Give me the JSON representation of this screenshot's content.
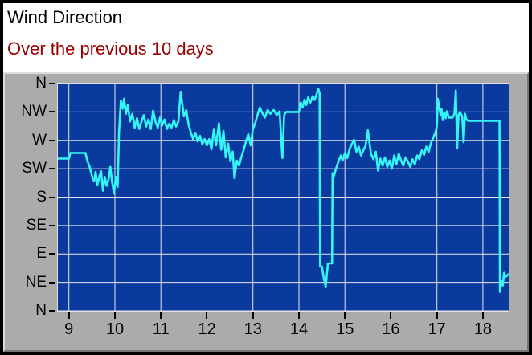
{
  "header": {
    "title": "Wind Direction",
    "subtitle": "Over the previous 10 days",
    "title_color": "#000000",
    "subtitle_color": "#990000",
    "bg": "#ffffff"
  },
  "panel": {
    "bg": "#ababab"
  },
  "chart_data": {
    "type": "line",
    "title": "Wind Direction",
    "subtitle": "Over the previous 10 days",
    "plot_bg": "#0a3a9e",
    "grid_color": "#e4e7ee",
    "line_color": "#35f6f6",
    "axis_label_color": "#000000",
    "grid": true,
    "legend": false,
    "x_axis": {
      "unit": "day of month",
      "range": [
        8.76,
        18.56
      ],
      "ticks": [
        {
          "value": 9,
          "label": "9"
        },
        {
          "value": 10,
          "label": "10"
        },
        {
          "value": 11,
          "label": "11"
        },
        {
          "value": 12,
          "label": "12"
        },
        {
          "value": 13,
          "label": "13"
        },
        {
          "value": 14,
          "label": "14"
        },
        {
          "value": 15,
          "label": "15"
        },
        {
          "value": 16,
          "label": "16"
        },
        {
          "value": 17,
          "label": "17"
        },
        {
          "value": 18,
          "label": "18"
        }
      ]
    },
    "y_axis": {
      "unit": "compass direction (degrees)",
      "range": [
        0,
        360
      ],
      "ticks": [
        {
          "value": 360,
          "label": "N"
        },
        {
          "value": 315,
          "label": "NW"
        },
        {
          "value": 270,
          "label": "W"
        },
        {
          "value": 225,
          "label": "SW"
        },
        {
          "value": 180,
          "label": "S"
        },
        {
          "value": 135,
          "label": "SE"
        },
        {
          "value": 90,
          "label": "E"
        },
        {
          "value": 45,
          "label": "NE"
        },
        {
          "value": 0,
          "label": "N"
        }
      ]
    },
    "series": [
      {
        "name": "wind_direction",
        "color": "#35f6f6",
        "points": [
          [
            8.76,
            241
          ],
          [
            9.0,
            241
          ],
          [
            9.03,
            250
          ],
          [
            9.36,
            250
          ],
          [
            9.4,
            238
          ],
          [
            9.45,
            228
          ],
          [
            9.5,
            214
          ],
          [
            9.55,
            205
          ],
          [
            9.58,
            220
          ],
          [
            9.62,
            200
          ],
          [
            9.66,
            212
          ],
          [
            9.7,
            221
          ],
          [
            9.74,
            190
          ],
          [
            9.78,
            212
          ],
          [
            9.82,
            198
          ],
          [
            9.86,
            208
          ],
          [
            9.9,
            228
          ],
          [
            9.94,
            204
          ],
          [
            9.98,
            186
          ],
          [
            10.02,
            212
          ],
          [
            10.06,
            196
          ],
          [
            10.09,
            282
          ],
          [
            10.13,
            333
          ],
          [
            10.17,
            320
          ],
          [
            10.2,
            336
          ],
          [
            10.24,
            312
          ],
          [
            10.28,
            326
          ],
          [
            10.33,
            300
          ],
          [
            10.38,
            312
          ],
          [
            10.43,
            290
          ],
          [
            10.48,
            305
          ],
          [
            10.53,
            288
          ],
          [
            10.58,
            300
          ],
          [
            10.63,
            310
          ],
          [
            10.68,
            292
          ],
          [
            10.73,
            303
          ],
          [
            10.78,
            288
          ],
          [
            10.83,
            317
          ],
          [
            10.88,
            300
          ],
          [
            10.93,
            290
          ],
          [
            10.98,
            306
          ],
          [
            11.03,
            294
          ],
          [
            11.08,
            303
          ],
          [
            11.13,
            288
          ],
          [
            11.18,
            296
          ],
          [
            11.23,
            290
          ],
          [
            11.28,
            302
          ],
          [
            11.33,
            292
          ],
          [
            11.38,
            300
          ],
          [
            11.43,
            347
          ],
          [
            11.47,
            325
          ],
          [
            11.5,
            308
          ],
          [
            11.55,
            318
          ],
          [
            11.6,
            295
          ],
          [
            11.65,
            283
          ],
          [
            11.7,
            272
          ],
          [
            11.75,
            282
          ],
          [
            11.8,
            268
          ],
          [
            11.85,
            277
          ],
          [
            11.9,
            264
          ],
          [
            11.95,
            272
          ],
          [
            12.0,
            262
          ],
          [
            12.05,
            272
          ],
          [
            12.1,
            256
          ],
          [
            12.15,
            288
          ],
          [
            12.2,
            262
          ],
          [
            12.26,
            297
          ],
          [
            12.31,
            255
          ],
          [
            12.36,
            285
          ],
          [
            12.41,
            243
          ],
          [
            12.46,
            265
          ],
          [
            12.51,
            237
          ],
          [
            12.56,
            252
          ],
          [
            12.6,
            210
          ],
          [
            12.65,
            238
          ],
          [
            12.7,
            230
          ],
          [
            12.75,
            244
          ],
          [
            12.8,
            255
          ],
          [
            12.85,
            268
          ],
          [
            12.9,
            280
          ],
          [
            12.95,
            262
          ],
          [
            13.0,
            288
          ],
          [
            13.05,
            297
          ],
          [
            13.1,
            310
          ],
          [
            13.15,
            322
          ],
          [
            13.2,
            314
          ],
          [
            13.26,
            306
          ],
          [
            13.32,
            318
          ],
          [
            13.38,
            312
          ],
          [
            13.45,
            318
          ],
          [
            13.52,
            310
          ],
          [
            13.58,
            316
          ],
          [
            13.64,
            242
          ],
          [
            13.68,
            310
          ],
          [
            13.72,
            315
          ],
          [
            14.0,
            315
          ],
          [
            14.04,
            330
          ],
          [
            14.08,
            322
          ],
          [
            14.12,
            334
          ],
          [
            14.16,
            326
          ],
          [
            14.2,
            338
          ],
          [
            14.25,
            330
          ],
          [
            14.3,
            340
          ],
          [
            14.34,
            334
          ],
          [
            14.38,
            342
          ],
          [
            14.42,
            352
          ],
          [
            14.45,
            345
          ],
          [
            14.46,
            70
          ],
          [
            14.5,
            70
          ],
          [
            14.53,
            56
          ],
          [
            14.56,
            45
          ],
          [
            14.58,
            38
          ],
          [
            14.6,
            52
          ],
          [
            14.63,
            75
          ],
          [
            14.72,
            75
          ],
          [
            14.73,
            218
          ],
          [
            14.76,
            213
          ],
          [
            14.8,
            224
          ],
          [
            14.84,
            232
          ],
          [
            14.88,
            240
          ],
          [
            14.91,
            246
          ],
          [
            14.95,
            238
          ],
          [
            15.0,
            250
          ],
          [
            15.05,
            242
          ],
          [
            15.1,
            256
          ],
          [
            15.15,
            264
          ],
          [
            15.2,
            271
          ],
          [
            15.25,
            252
          ],
          [
            15.3,
            260
          ],
          [
            15.35,
            246
          ],
          [
            15.4,
            254
          ],
          [
            15.45,
            262
          ],
          [
            15.5,
            286
          ],
          [
            15.53,
            268
          ],
          [
            15.57,
            248
          ],
          [
            15.62,
            240
          ],
          [
            15.67,
            252
          ],
          [
            15.72,
            222
          ],
          [
            15.77,
            241
          ],
          [
            15.82,
            230
          ],
          [
            15.87,
            243
          ],
          [
            15.92,
            228
          ],
          [
            15.97,
            238
          ],
          [
            16.02,
            225
          ],
          [
            16.07,
            246
          ],
          [
            16.12,
            232
          ],
          [
            16.17,
            249
          ],
          [
            16.22,
            238
          ],
          [
            16.27,
            230
          ],
          [
            16.32,
            243
          ],
          [
            16.37,
            236
          ],
          [
            16.42,
            228
          ],
          [
            16.47,
            240
          ],
          [
            16.52,
            232
          ],
          [
            16.57,
            246
          ],
          [
            16.62,
            240
          ],
          [
            16.67,
            254
          ],
          [
            16.72,
            247
          ],
          [
            16.77,
            260
          ],
          [
            16.82,
            252
          ],
          [
            16.87,
            266
          ],
          [
            16.92,
            274
          ],
          [
            16.97,
            283
          ],
          [
            17.0,
            293
          ],
          [
            17.02,
            336
          ],
          [
            17.05,
            322
          ],
          [
            17.08,
            310
          ],
          [
            17.1,
            320
          ],
          [
            17.13,
            302
          ],
          [
            17.16,
            314
          ],
          [
            17.19,
            305
          ],
          [
            17.22,
            316
          ],
          [
            17.26,
            306
          ],
          [
            17.34,
            306
          ],
          [
            17.38,
            312
          ],
          [
            17.41,
            349
          ],
          [
            17.44,
            257
          ],
          [
            17.47,
            310
          ],
          [
            17.5,
            315
          ],
          [
            17.55,
            308
          ],
          [
            17.58,
            267
          ],
          [
            17.61,
            312
          ],
          [
            17.64,
            303
          ],
          [
            17.68,
            301
          ],
          [
            18.36,
            301
          ],
          [
            18.37,
            30
          ],
          [
            18.4,
            48
          ],
          [
            18.43,
            40
          ],
          [
            18.46,
            60
          ],
          [
            18.5,
            54
          ],
          [
            18.56,
            58
          ]
        ]
      }
    ]
  }
}
